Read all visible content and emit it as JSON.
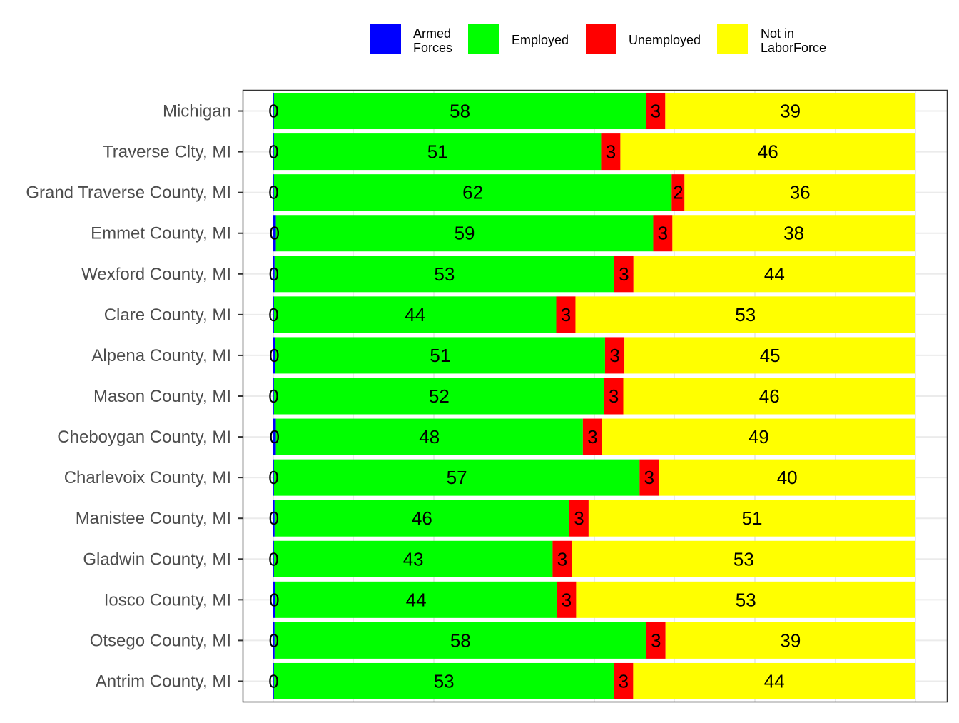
{
  "chart_data": {
    "type": "bar",
    "orientation": "horizontal",
    "stacked": true,
    "percent_scale": true,
    "xlim": [
      0,
      100
    ],
    "grid": true,
    "legend_position": "top",
    "categories": [
      "Michigan",
      "Traverse Clty, MI",
      "Grand Traverse County, MI",
      "Emmet County, MI",
      "Wexford County, MI",
      "Clare County, MI",
      "Alpena County, MI",
      "Mason County, MI",
      "Cheboygan County, MI",
      "Charlevoix County, MI",
      "Manistee County, MI",
      "Gladwin County, MI",
      "Iosco County, MI",
      "Otsego County, MI",
      "Antrim County, MI"
    ],
    "series": [
      {
        "name": "Armed Forces",
        "legend_lines": [
          "Armed",
          "Forces"
        ],
        "color": "#0000ff",
        "values": [
          0.1,
          0.1,
          0.1,
          0.4,
          0.2,
          0.1,
          0.3,
          0.1,
          0.4,
          0.1,
          0.2,
          0.1,
          0.3,
          0.2,
          0.1
        ]
      },
      {
        "name": "Employed",
        "legend_lines": [
          "Employed"
        ],
        "color": "#00ff00",
        "values": [
          58,
          51,
          62,
          59,
          53,
          44,
          51,
          52,
          48,
          57,
          46,
          43,
          44,
          58,
          53
        ]
      },
      {
        "name": "Unemployed",
        "legend_lines": [
          "Unemployed"
        ],
        "color": "#ff0000",
        "values": [
          3,
          3,
          2,
          3,
          3,
          3,
          3,
          3,
          3,
          3,
          3,
          3,
          3,
          3,
          3
        ]
      },
      {
        "name": "Not in LaborForce",
        "legend_lines": [
          "Not in",
          "LaborForce"
        ],
        "color": "#ffff00",
        "values": [
          39,
          46,
          36,
          38,
          44,
          53,
          45,
          46,
          49,
          40,
          51,
          53,
          53,
          39,
          44
        ]
      }
    ],
    "data_labels": [
      [
        "0",
        "58",
        "3",
        "39"
      ],
      [
        "0",
        "51",
        "3",
        "46"
      ],
      [
        "0",
        "62",
        "2",
        "36"
      ],
      [
        "0",
        "59",
        "3",
        "38"
      ],
      [
        "0",
        "53",
        "3",
        "44"
      ],
      [
        "0",
        "44",
        "3",
        "53"
      ],
      [
        "0",
        "51",
        "3",
        "45"
      ],
      [
        "0",
        "52",
        "3",
        "46"
      ],
      [
        "0",
        "48",
        "3",
        "49"
      ],
      [
        "0",
        "57",
        "3",
        "40"
      ],
      [
        "0",
        "46",
        "3",
        "51"
      ],
      [
        "0",
        "43",
        "3",
        "53"
      ],
      [
        "0",
        "44",
        "3",
        "53"
      ],
      [
        "0",
        "58",
        "3",
        "39"
      ],
      [
        "0",
        "53",
        "3",
        "44"
      ]
    ],
    "colors": {
      "panel_border": "#333333",
      "gridline": "#ebebeb",
      "category_text": "#4d4d4d",
      "tick": "#333333"
    }
  }
}
